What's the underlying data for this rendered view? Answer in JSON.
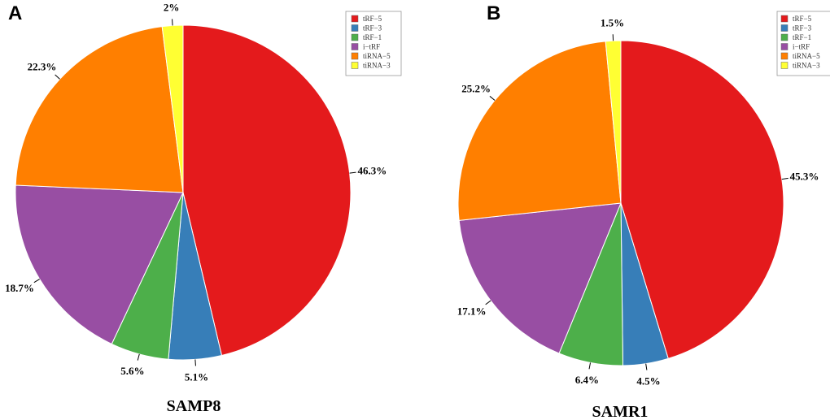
{
  "chart_data": [
    {
      "type": "pie",
      "panel": "A",
      "title": "SAMP8",
      "legend_position": "top-right",
      "start": "12 o'clock, clockwise",
      "categories": [
        "tRF-5",
        "tRF-3",
        "tRF-1",
        "i-tRF",
        "tiRNA-5",
        "tiRNA-3"
      ],
      "values": [
        46.3,
        5.1,
        5.6,
        18.7,
        22.3,
        2
      ],
      "labels": [
        "46.3%",
        "5.1%",
        "5.6%",
        "18.7%",
        "22.3%",
        "2%"
      ]
    },
    {
      "type": "pie",
      "panel": "B",
      "title": "SAMR1",
      "legend_position": "top-right",
      "start": "12 o'clock, clockwise",
      "categories": [
        "tRF-5",
        "tRF-3",
        "tRF-1",
        "i-tRF",
        "tiRNA-5",
        "tiRNA-3"
      ],
      "values": [
        45.3,
        4.5,
        6.4,
        17.1,
        25.2,
        1.5
      ],
      "labels": [
        "45.3%",
        "4.5%",
        "6.4%",
        "17.1%",
        "25.2%",
        "1.5%"
      ]
    }
  ],
  "legend": {
    "entries": [
      "tRF−5",
      "tRF−3",
      "tRF−1",
      "i−tRF",
      "tiRNA−5",
      "tiRNA−3"
    ]
  },
  "colors": [
    "#e41a1c",
    "#377eb8",
    "#4daf4a",
    "#984ea3",
    "#ff7f00",
    "#ffff33"
  ]
}
